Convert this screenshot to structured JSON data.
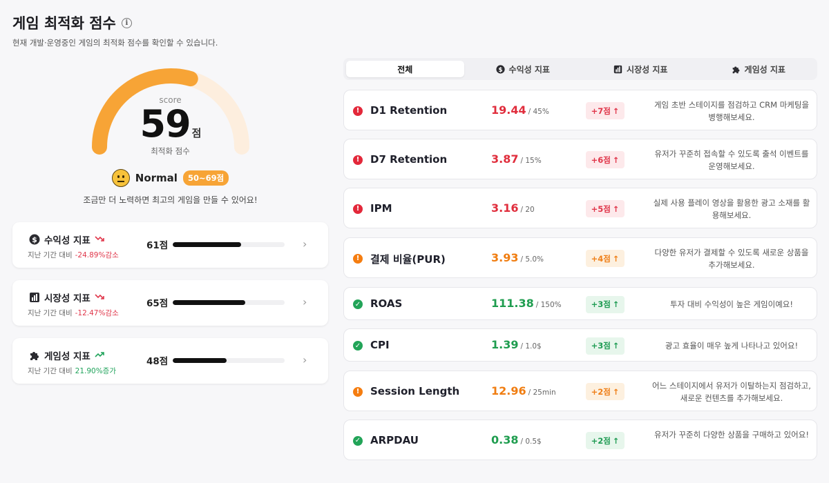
{
  "header": {
    "title": "게임 최적화 점수",
    "subtitle": "현재 개발·운영중인 게임의 최적화 점수를 확인할 수 있습니다."
  },
  "score": {
    "label": "score",
    "value": "59",
    "unit": "점",
    "caption": "최적화 점수",
    "status": "Normal",
    "range": "50~69점",
    "message": "조금만 더 노력하면 최고의 게임을 만들 수 있어요!",
    "fraction": 0.59,
    "accent": "#f7a436",
    "track": "#fdeede"
  },
  "metrics": [
    {
      "icon": "dollar-icon",
      "label": "수익성 지표",
      "trend": "down",
      "sub_label": "지난 기간 대비",
      "change": "-24.89%감소",
      "score": "61점",
      "fill_percent": 61
    },
    {
      "icon": "bar-chart-icon",
      "label": "시장성 지표",
      "trend": "down",
      "sub_label": "지난 기간 대비",
      "change": "-12.47%감소",
      "score": "65점",
      "fill_percent": 65
    },
    {
      "icon": "puzzle-icon",
      "label": "게임성 지표",
      "trend": "up",
      "sub_label": "지난 기간 대비",
      "change": "21.90%증가",
      "score": "48점",
      "fill_percent": 48
    }
  ],
  "tabs": [
    {
      "label": "전체",
      "icon": ""
    },
    {
      "label": "수익성 지표",
      "icon": "dollar-icon"
    },
    {
      "label": "시장성 지표",
      "icon": "bar-chart-icon"
    },
    {
      "label": "게임성 지표",
      "icon": "puzzle-icon"
    }
  ],
  "rows": [
    {
      "status": "red",
      "name": "D1 Retention",
      "value": "19.44",
      "target": "/ 45%",
      "delta": "+7점",
      "tip": "게임 초반 스테이지를 점검하고 CRM 마케팅을 병행해보세요."
    },
    {
      "status": "red",
      "name": "D7 Retention",
      "value": "3.87",
      "target": "/ 15%",
      "delta": "+6점",
      "tip": "유저가 꾸준히 접속할 수 있도록 출석 이벤트를 운영해보세요."
    },
    {
      "status": "red",
      "name": "IPM",
      "value": "3.16",
      "target": "/ 20",
      "delta": "+5점",
      "tip": "실제 사용 플레이 영상을 활용한 광고 소재를 활용해보세요."
    },
    {
      "status": "orange",
      "name": "결제 비율(PUR)",
      "value": "3.93",
      "target": "/ 5.0%",
      "delta": "+4점",
      "tip": "다양한 유저가 결제할 수 있도록 새로운 상품을 추가해보세요."
    },
    {
      "status": "green",
      "name": "ROAS",
      "value": "111.38",
      "target": "/ 150%",
      "delta": "+3점",
      "tip": "투자 대비 수익성이 높은 게임이예요!"
    },
    {
      "status": "green",
      "name": "CPI",
      "value": "1.39",
      "target": "/ 1.0$",
      "delta": "+3점",
      "tip": "광고 효율이 매우 높게 나타나고 있어요!"
    },
    {
      "status": "orange",
      "name": "Session Length",
      "value": "12.96",
      "target": "/ 25min",
      "delta": "+2점",
      "tip": "어느 스테이지에서 유저가 이탈하는지 점검하고, 새로운 컨텐츠를 추가해보세요."
    },
    {
      "status": "green",
      "name": "ARPDAU",
      "value": "0.38",
      "target": "/ 0.5$",
      "delta": "+2점",
      "tip": "유저가 꾸준히 다양한 상품을 구매하고 있어요!"
    }
  ]
}
